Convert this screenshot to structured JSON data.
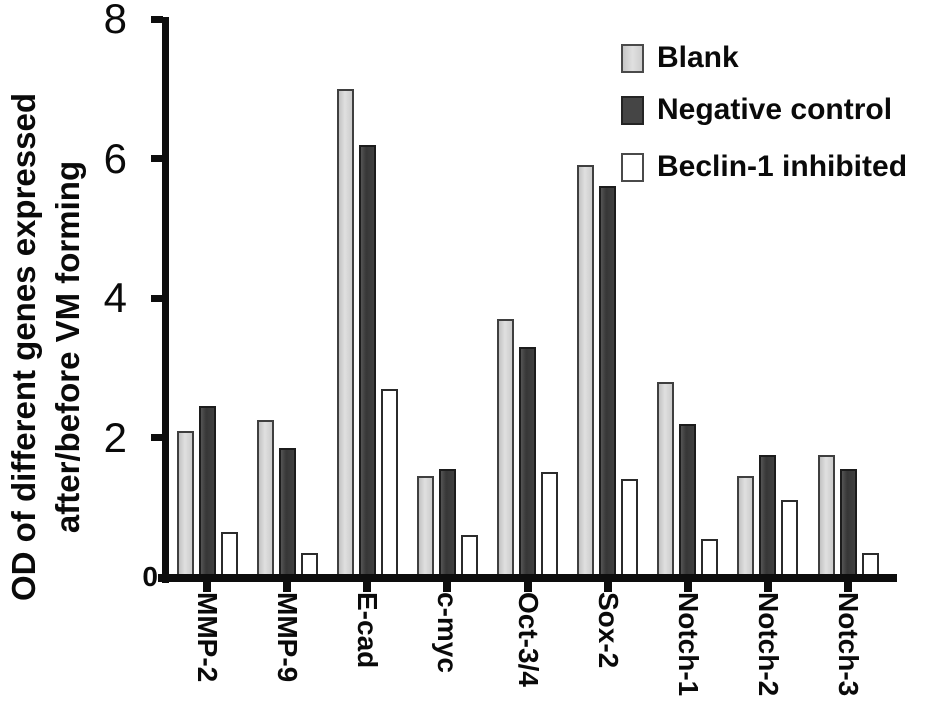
{
  "figure": {
    "background": "#ffffff",
    "axis_color": "#0d0d0d",
    "text_color": "#0a0a0a"
  },
  "chart_data": {
    "type": "bar",
    "title": "",
    "xlabel": "",
    "ylabel_line1": "OD of different genes expressed",
    "ylabel_line2": "after/before VM forming",
    "ylim": [
      0,
      8
    ],
    "yticks": [
      0,
      2,
      4,
      6,
      8
    ],
    "grid": false,
    "legend_position": "top-right",
    "categories": [
      "MMP-2",
      "MMP-9",
      "E-cad",
      "c-myc",
      "Oct-3/4",
      "Sox-2",
      "Notch-1",
      "Notch-2",
      "Notch-3"
    ],
    "series": [
      {
        "name": "Blank",
        "color_key": "blank",
        "fill": "#d6d6d6",
        "values": [
          2.1,
          2.25,
          7.0,
          1.45,
          3.7,
          5.9,
          2.8,
          1.45,
          1.75
        ]
      },
      {
        "name": "Negative control",
        "color_key": "negative",
        "fill": "#414141",
        "values": [
          2.45,
          1.85,
          6.2,
          1.55,
          3.3,
          5.6,
          2.2,
          1.75,
          1.55
        ]
      },
      {
        "name": "Beclin-1 inhibited",
        "color_key": "beclin",
        "fill": "#ffffff",
        "values": [
          0.65,
          0.35,
          2.7,
          0.6,
          1.5,
          1.4,
          0.55,
          1.1,
          0.35
        ]
      }
    ]
  }
}
